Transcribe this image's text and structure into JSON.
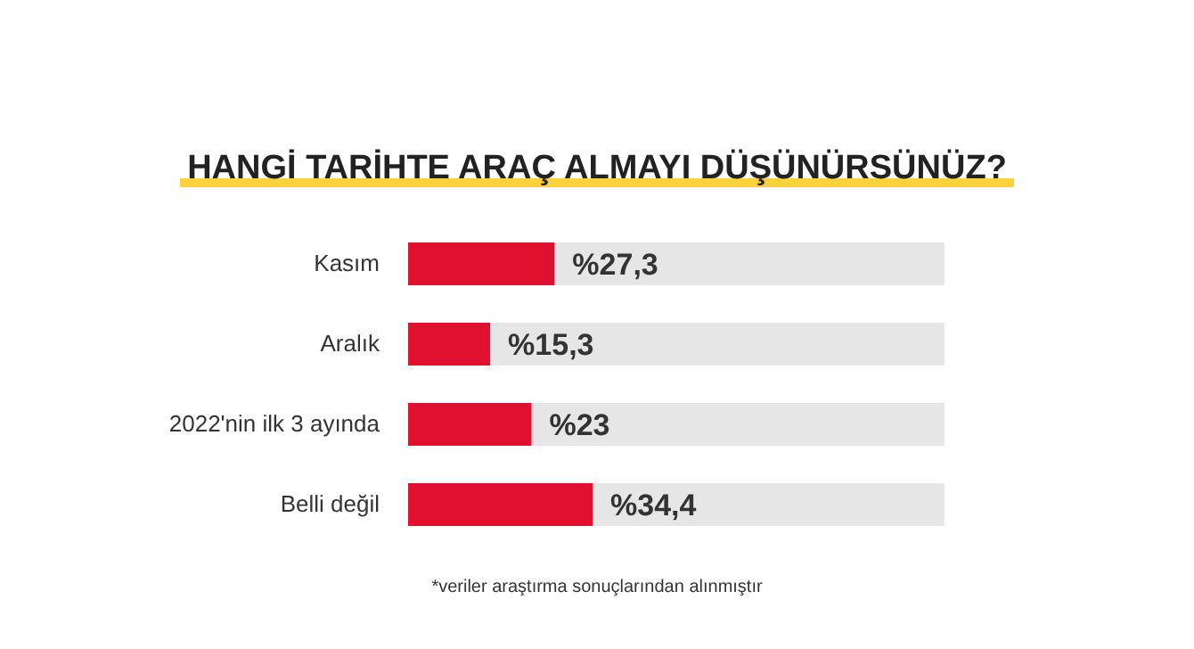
{
  "chart_data": {
    "type": "bar",
    "orientation": "horizontal",
    "title": "HANGİ TARİHTE ARAÇ ALMAYI DÜŞÜNÜRSÜNÜZ?",
    "categories": [
      "Kasım",
      "Aralık",
      "2022'nin ilk 3 ayında",
      "Belli değil"
    ],
    "values": [
      27.3,
      15.3,
      23,
      34.4
    ],
    "color": "#e0102f",
    "value_labels": [
      "%27,3",
      "%15,3",
      "%23",
      "%34,4"
    ],
    "xlim": [
      0,
      100
    ],
    "tick_labels": "y",
    "grid": false,
    "legend": false,
    "annotations": [
      "*veriler araştırma sonuçlarından alınmıştır"
    ]
  }
}
